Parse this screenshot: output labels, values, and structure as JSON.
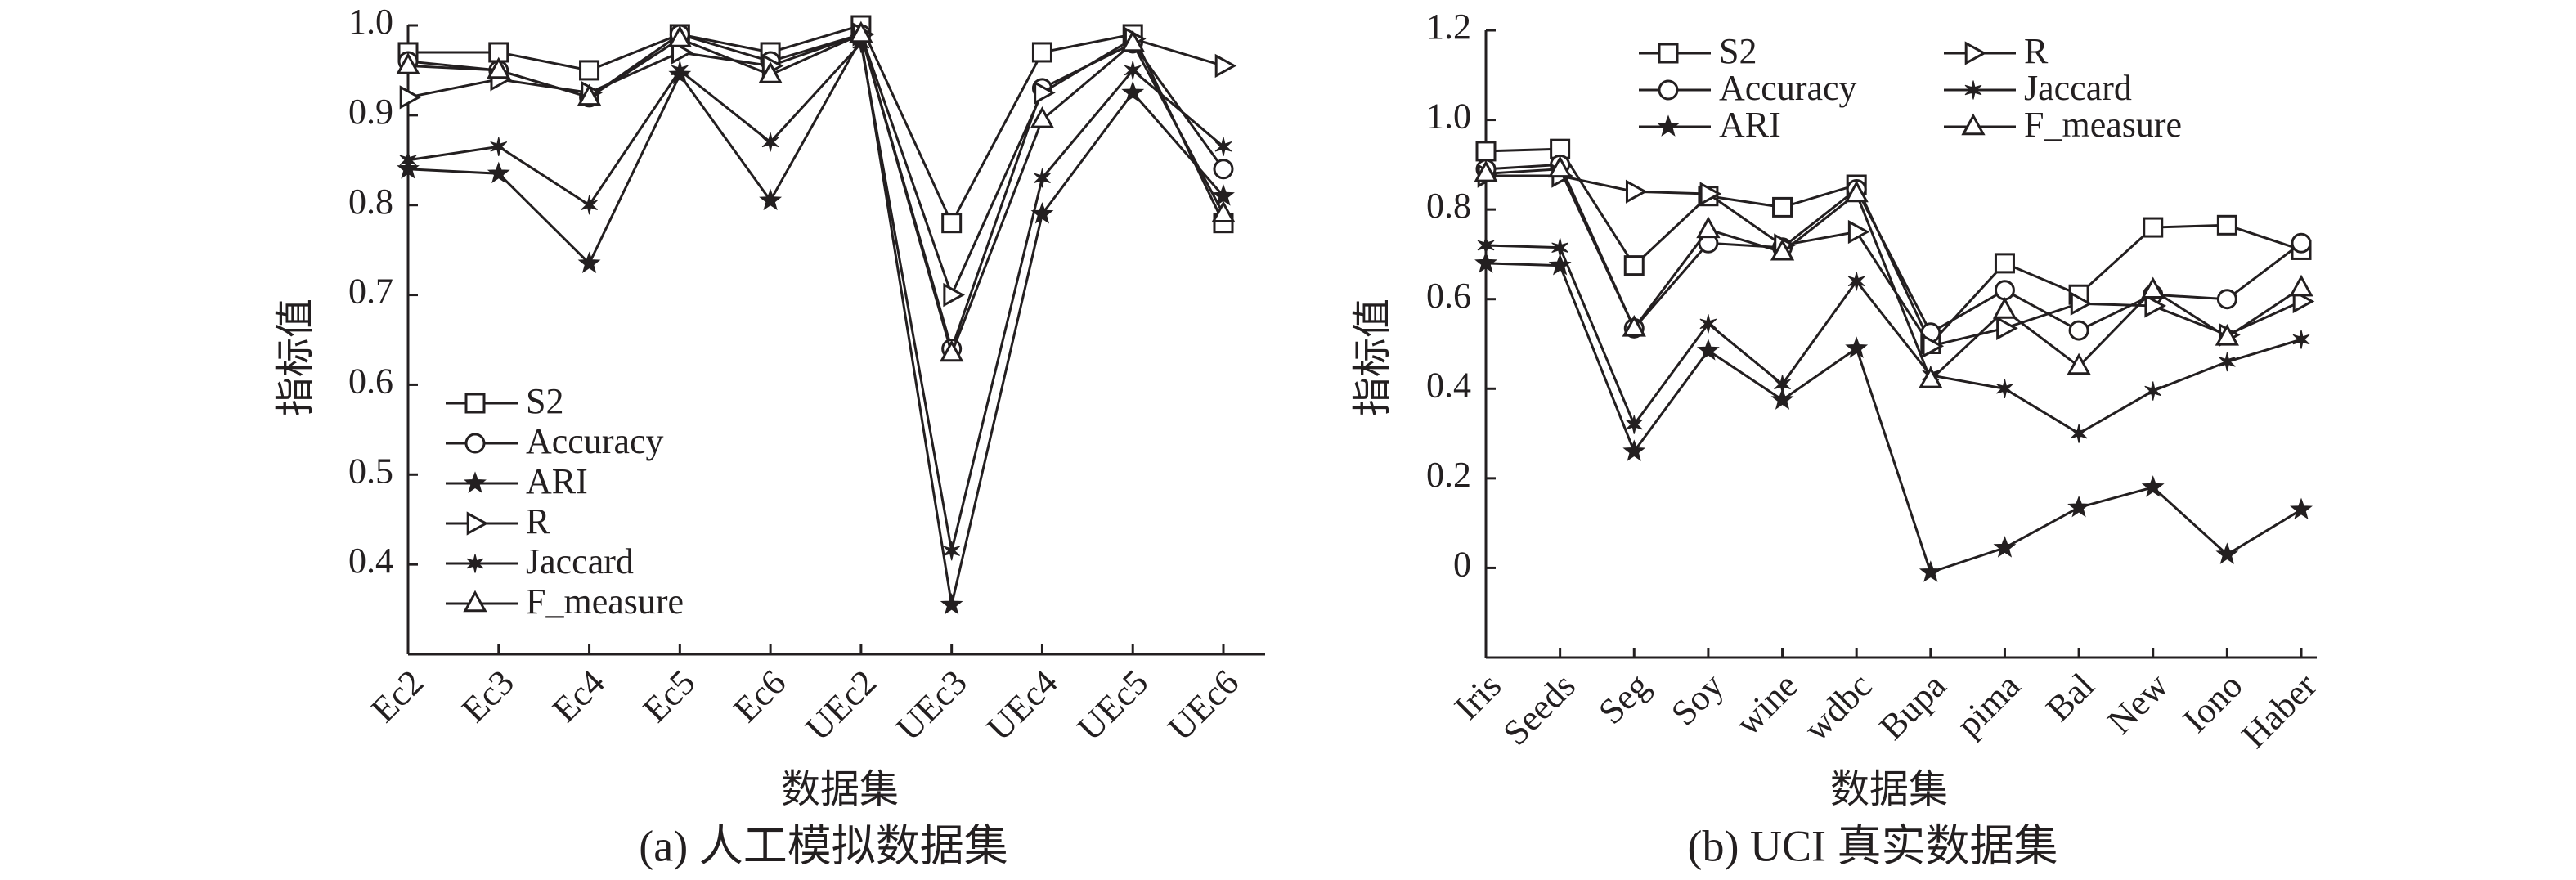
{
  "chart_data": [
    {
      "type": "line",
      "caption": "(a) 人工模拟数据集",
      "x_label": "数据集",
      "y_label": "指标值",
      "categories": [
        "Ec2",
        "Ec3",
        "Ec4",
        "Ec5",
        "Ec6",
        "UEc2",
        "UEc3",
        "UEc4",
        "UEc5",
        "UEc6"
      ],
      "ylim": [
        0.3,
        1.0
      ],
      "yticks": [
        0.4,
        0.5,
        0.6,
        0.7,
        0.8,
        0.9,
        {
          "value": 1,
          "label": "1.0"
        }
      ],
      "grid": false,
      "legend": "lower left",
      "series": [
        {
          "name": "S2",
          "color": "#231f20",
          "marker": "square",
          "values": [
            0.97,
            0.97,
            0.95,
            0.99,
            0.97,
            1.0,
            0.78,
            0.97,
            0.99,
            0.78
          ]
        },
        {
          "name": "Accuracy",
          "color": "#231f20",
          "marker": "circle",
          "values": [
            0.96,
            0.95,
            0.92,
            0.99,
            0.96,
            0.99,
            0.64,
            0.93,
            0.98,
            0.84
          ]
        },
        {
          "name": "ARI",
          "color": "#231f20",
          "marker": "star",
          "values": [
            0.84,
            0.835,
            0.735,
            0.945,
            0.805,
            0.985,
            0.355,
            0.79,
            0.925,
            0.81
          ]
        },
        {
          "name": "R",
          "color": "#231f20",
          "marker": "triangle-right",
          "values": [
            0.92,
            0.94,
            0.925,
            0.97,
            0.955,
            0.99,
            0.7,
            0.925,
            0.985,
            0.955
          ]
        },
        {
          "name": "Jaccard",
          "color": "#231f20",
          "marker": "asterisk",
          "values": [
            0.85,
            0.865,
            0.8,
            0.95,
            0.87,
            0.98,
            0.415,
            0.83,
            0.95,
            0.865
          ]
        },
        {
          "name": "F_measure",
          "color": "#231f20",
          "marker": "triangle-up",
          "values": [
            0.955,
            0.95,
            0.92,
            0.985,
            0.945,
            0.99,
            0.635,
            0.895,
            0.98,
            0.79
          ]
        }
      ]
    },
    {
      "type": "line",
      "caption": "(b) UCI 真实数据集",
      "x_label": "数据集",
      "y_label": "指标值",
      "categories": [
        "Iris",
        "Seeds",
        "Seg",
        "Soy",
        "wine",
        "wdbc",
        "Bupa",
        "pima",
        "Bal",
        "New",
        "Iono",
        "Haber"
      ],
      "ylim": [
        -0.2,
        1.2
      ],
      "yticks": [
        0,
        0.2,
        0.4,
        0.6,
        0.8,
        {
          "value": 1,
          "label": "1.0"
        },
        1.2
      ],
      "grid": false,
      "legend": "upper left",
      "series": [
        {
          "name": "S2",
          "color": "#231f20",
          "marker": "square",
          "values": [
            0.93,
            0.935,
            0.675,
            0.83,
            0.805,
            0.855,
            0.5,
            0.68,
            0.61,
            0.76,
            0.765,
            0.71
          ]
        },
        {
          "name": "Accuracy",
          "color": "#231f20",
          "marker": "circle",
          "values": [
            0.89,
            0.9,
            0.535,
            0.725,
            0.715,
            0.845,
            0.525,
            0.62,
            0.53,
            0.61,
            0.6,
            0.725
          ]
        },
        {
          "name": "ARI",
          "color": "#231f20",
          "marker": "star",
          "values": [
            0.68,
            0.675,
            0.26,
            0.485,
            0.375,
            0.49,
            -0.01,
            0.045,
            0.135,
            0.18,
            0.03,
            0.13
          ]
        },
        {
          "name": "R",
          "color": "#231f20",
          "marker": "triangle-right",
          "values": [
            0.875,
            0.875,
            0.84,
            0.835,
            0.72,
            0.75,
            0.495,
            0.535,
            0.59,
            0.585,
            0.52,
            0.595
          ]
        },
        {
          "name": "Jaccard",
          "color": "#231f20",
          "marker": "asterisk",
          "values": [
            0.72,
            0.715,
            0.32,
            0.545,
            0.41,
            0.64,
            0.43,
            0.4,
            0.3,
            0.395,
            0.46,
            0.51
          ]
        },
        {
          "name": "F_measure",
          "color": "#231f20",
          "marker": "triangle-up",
          "values": [
            0.88,
            0.89,
            0.535,
            0.755,
            0.705,
            0.835,
            0.42,
            0.575,
            0.45,
            0.62,
            0.515,
            0.625
          ]
        }
      ]
    }
  ]
}
